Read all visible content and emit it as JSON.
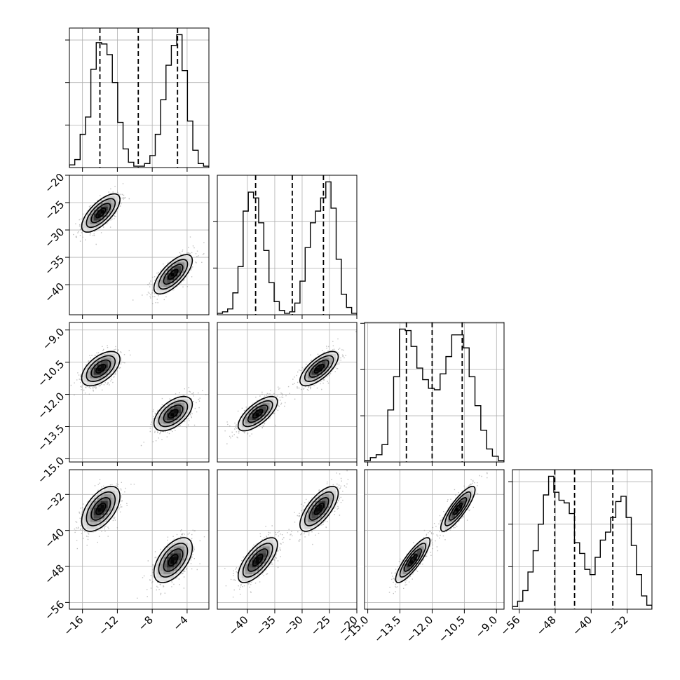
{
  "chart_data": {
    "type": "corner",
    "ndim": 4,
    "params": [
      {
        "range": [
          -17.5,
          -1.5
        ],
        "xticks": [
          -16,
          -12,
          -8,
          -4
        ],
        "yticks": [],
        "hist": [
          0.02,
          0.06,
          0.25,
          0.38,
          0.74,
          0.94,
          0.93,
          0.85,
          0.64,
          0.34,
          0.14,
          0.04,
          0.01,
          0.01,
          0.03,
          0.09,
          0.25,
          0.51,
          0.77,
          0.92,
          1.0,
          0.73,
          0.35,
          0.13,
          0.03,
          0.01
        ],
        "quantiles": [
          -14.0,
          -9.6,
          -5.1
        ]
      },
      {
        "range": [
          -45.5,
          -20.0
        ],
        "xticks": [
          -40,
          -35,
          -30,
          -25,
          -20
        ],
        "yticks": [
          -20,
          -25,
          -30,
          -35,
          -40
        ],
        "hist": [
          0.01,
          0.02,
          0.04,
          0.15,
          0.33,
          0.71,
          0.84,
          0.8,
          0.63,
          0.44,
          0.22,
          0.09,
          0.03,
          0.01,
          0.02,
          0.08,
          0.23,
          0.46,
          0.63,
          0.71,
          0.8,
          0.91,
          0.73,
          0.38,
          0.14,
          0.05,
          0.01
        ],
        "quantiles": [
          -38.5,
          -31.8,
          -26.1
        ]
      },
      {
        "range": [
          -15.15,
          -8.65
        ],
        "xticks": [
          -15.0,
          -13.5,
          -12.0,
          -10.5,
          -9.0
        ],
        "yticks": [
          -9.0,
          -10.5,
          -12.0,
          -13.5,
          -15.0
        ],
        "hist": [
          0.01,
          0.03,
          0.05,
          0.12,
          0.36,
          0.59,
          0.92,
          0.91,
          0.8,
          0.65,
          0.57,
          0.51,
          0.5,
          0.61,
          0.73,
          0.88,
          0.88,
          0.79,
          0.59,
          0.39,
          0.22,
          0.09,
          0.04,
          0.01
        ],
        "quantiles": [
          -13.2,
          -12.0,
          -10.6
        ]
      },
      {
        "range": [
          -57.5,
          -26.5
        ],
        "xticks": [
          -56,
          -48,
          -40,
          -32
        ],
        "yticks": [
          -32,
          -40,
          -48,
          -56
        ],
        "hist": [
          0.02,
          0.06,
          0.14,
          0.28,
          0.44,
          0.64,
          0.86,
          1.0,
          0.88,
          0.82,
          0.8,
          0.72,
          0.5,
          0.42,
          0.3,
          0.26,
          0.39,
          0.52,
          0.58,
          0.69,
          0.81,
          0.85,
          0.69,
          0.48,
          0.26,
          0.1,
          0.03
        ],
        "quantiles": [
          -48.1,
          -43.7,
          -35.2
        ]
      }
    ],
    "modes": [
      {
        "weight": 0.5,
        "mean": [
          -13.9,
          -26.9,
          -10.8,
          -35.2
        ],
        "sd": [
          1.1,
          1.75,
          0.4,
          2.5
        ]
      },
      {
        "weight": 0.5,
        "mean": [
          -5.6,
          -38.1,
          -12.9,
          -46.6
        ],
        "sd": [
          1.1,
          1.8,
          0.4,
          2.5
        ]
      }
    ],
    "correlations": [
      [
        1.0,
        0.7,
        0.55,
        0.55
      ],
      [
        0.7,
        1.0,
        0.7,
        0.7
      ],
      [
        0.55,
        0.7,
        1.0,
        0.85
      ],
      [
        0.55,
        0.7,
        0.85,
        1.0
      ]
    ],
    "contour_levels_sigma": [
      0.5,
      1.0,
      1.5,
      2.0
    ],
    "grid": true
  }
}
